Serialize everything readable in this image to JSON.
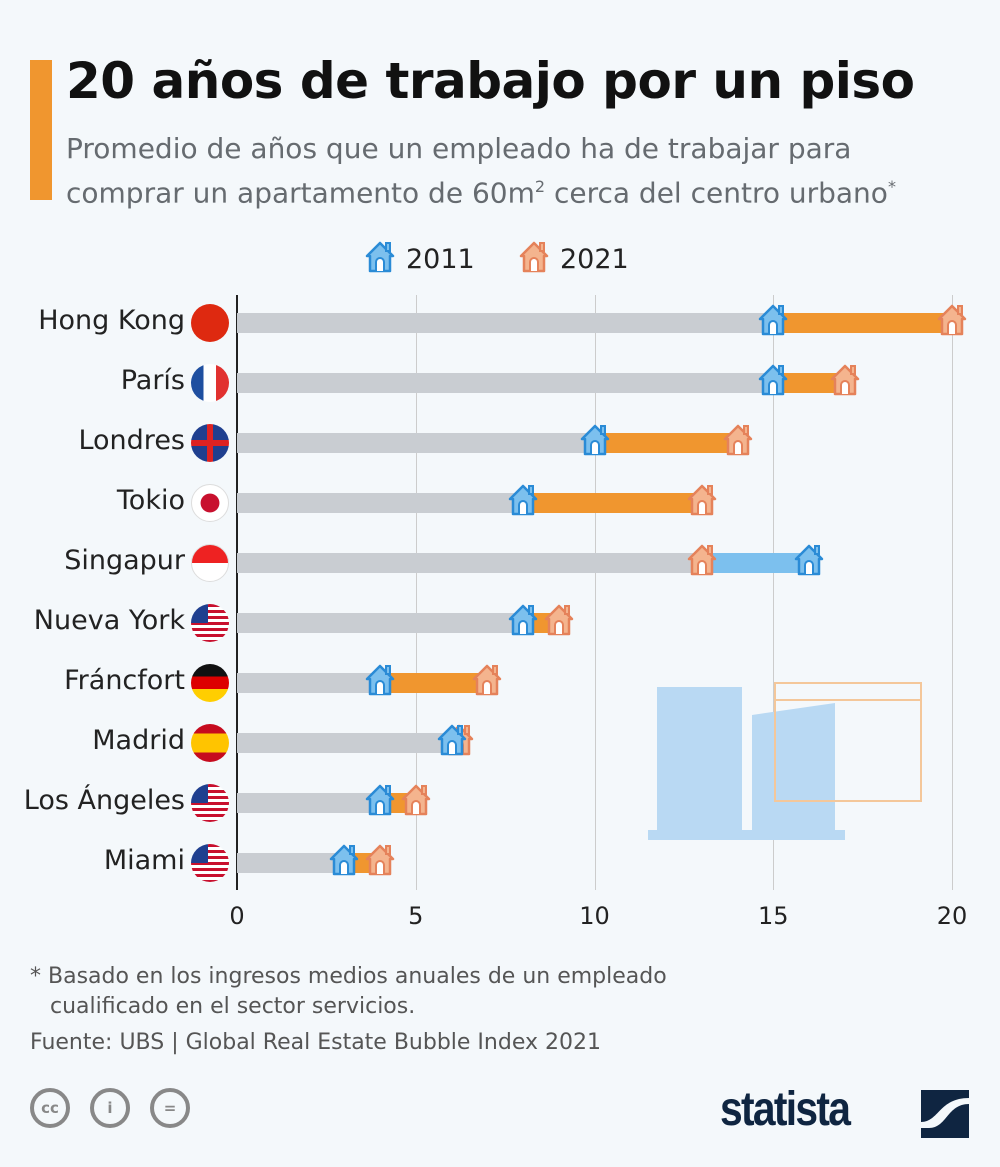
{
  "title": "20 años de trabajo por un piso",
  "subtitle_line1": "Promedio de años que un empleado ha de trabajar para",
  "subtitle_line2": "comprar un apartamento de 60m",
  "subtitle_sup": "2",
  "subtitle_line2b": " cerca del centro urbano",
  "subtitle_star": "*",
  "footnote1": "* Basado en los ingresos medios anuales de un empleado",
  "footnote2": "cualificado en el sector servicios.",
  "source": "Fuente: UBS | Global Real Estate Bubble Index 2021",
  "brand": "statista",
  "colors": {
    "y2011": "#7cc0ee",
    "y2011_stroke": "#2a8bd6",
    "y2021": "#f0962f",
    "y2021_icon": "#f4b48e",
    "gray": "#c9cdd2"
  },
  "chart_data": {
    "type": "bar",
    "title": "20 años de trabajo por un piso",
    "categories": [
      "Hong Kong",
      "París",
      "Londres",
      "Tokio",
      "Singapur",
      "Nueva York",
      "Fráncfort",
      "Madrid",
      "Los Ángeles",
      "Miami"
    ],
    "series": [
      {
        "name": "2011",
        "values": [
          15,
          15,
          10,
          8,
          16,
          8,
          4,
          6,
          4,
          3
        ]
      },
      {
        "name": "2021",
        "values": [
          20,
          17,
          14,
          13,
          13,
          9,
          7,
          6.2,
          5,
          4
        ]
      }
    ],
    "xlim": [
      0,
      20
    ],
    "xticks": [
      "0",
      "5",
      "10",
      "15",
      "20"
    ],
    "legend": [
      "2011",
      "2021"
    ],
    "legend_position": "top-center"
  }
}
